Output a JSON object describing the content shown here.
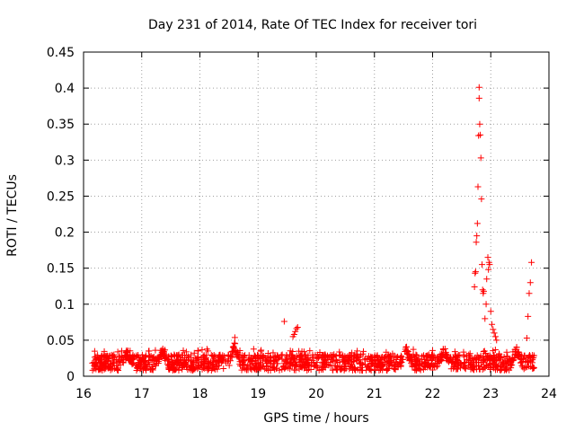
{
  "chart_data": {
    "type": "scatter",
    "title": "Day 231 of 2014, Rate Of TEC Index for receiver tori",
    "xlabel": "GPS time / hours",
    "ylabel": "ROTI / TECUs",
    "xlim": [
      16,
      24
    ],
    "ylim": [
      0,
      0.45
    ],
    "xticks": [
      "16",
      "17",
      "18",
      "19",
      "20",
      "21",
      "22",
      "23",
      "24"
    ],
    "yticks": [
      "0",
      "0.05",
      "0.1",
      "0.15",
      "0.2",
      "0.25",
      "0.3",
      "0.35",
      "0.4",
      "0.45"
    ],
    "grid": true,
    "marker": "+",
    "color": "#ff0000",
    "series": [
      {
        "name": "ROTI",
        "x": [
          19.45,
          19.6,
          19.62,
          19.64,
          19.66,
          19.68,
          22.72,
          22.73,
          22.74,
          22.75,
          22.76,
          22.77,
          22.78,
          22.79,
          22.8,
          22.8,
          22.81,
          22.82,
          22.83,
          22.84,
          22.85,
          22.86,
          22.87,
          22.88,
          22.9,
          22.92,
          22.93,
          22.95,
          22.96,
          22.97,
          22.98,
          23.0,
          23.02,
          23.04,
          23.06,
          23.08,
          23.1,
          23.62,
          23.64,
          23.66,
          23.68,
          23.7
        ],
        "y": [
          0.076,
          0.055,
          0.058,
          0.062,
          0.066,
          0.068,
          0.124,
          0.143,
          0.145,
          0.186,
          0.195,
          0.212,
          0.263,
          0.334,
          0.401,
          0.386,
          0.35,
          0.335,
          0.303,
          0.246,
          0.155,
          0.12,
          0.115,
          0.118,
          0.08,
          0.1,
          0.135,
          0.165,
          0.148,
          0.158,
          0.155,
          0.09,
          0.072,
          0.065,
          0.06,
          0.055,
          0.05,
          0.053,
          0.083,
          0.115,
          0.13,
          0.158
        ]
      }
    ],
    "baseline_band": {
      "x_range": [
        16.15,
        23.75
      ],
      "typical_range": [
        0.008,
        0.03
      ],
      "local_bumps": [
        {
          "x": 16.75,
          "peak": 0.04
        },
        {
          "x": 17.35,
          "peak": 0.043
        },
        {
          "x": 18.6,
          "peak": 0.055
        },
        {
          "x": 21.55,
          "peak": 0.045
        },
        {
          "x": 22.2,
          "peak": 0.045
        },
        {
          "x": 23.45,
          "peak": 0.043
        }
      ]
    }
  }
}
